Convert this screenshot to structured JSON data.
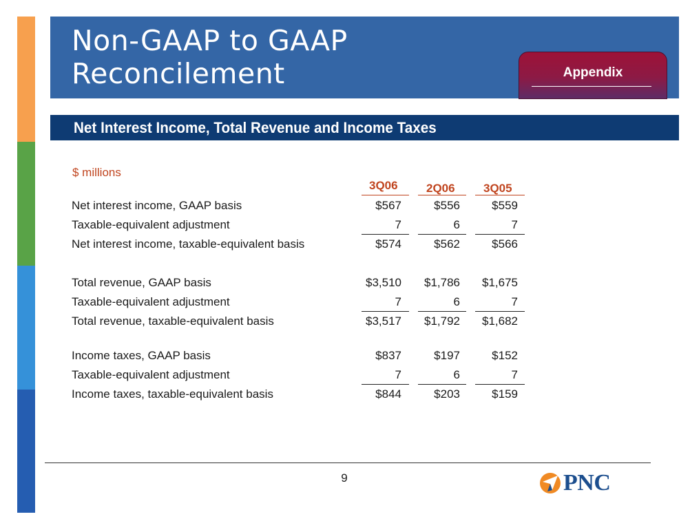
{
  "slide": {
    "title": "Non-GAAP to GAAP\nReconcilement",
    "tab_label": "Appendix",
    "section_title": "Net Interest Income, Total Revenue and Income Taxes",
    "units": "$ millions",
    "page_number": "9",
    "logo_text": "PNC"
  },
  "table": {
    "columns": [
      "3Q06",
      "2Q06",
      "3Q05"
    ],
    "rows": [
      {
        "label": "Net interest income, GAAP basis",
        "values": [
          "$567",
          "$556",
          "$559"
        ]
      },
      {
        "label": "Taxable-equivalent adjustment",
        "values": [
          "7",
          "6",
          "7"
        ]
      },
      {
        "label": "Net interest income, taxable-equivalent basis",
        "values": [
          "$574",
          "$562",
          "$566"
        ]
      },
      {
        "label": "Total revenue, GAAP basis",
        "values": [
          "$3,510",
          "$1,786",
          "$1,675"
        ]
      },
      {
        "label": "Taxable-equivalent adjustment",
        "values": [
          "7",
          "6",
          "7"
        ]
      },
      {
        "label": "Total revenue, taxable-equivalent basis",
        "values": [
          "$3,517",
          "$1,792",
          "$1,682"
        ]
      },
      {
        "label": "Income taxes, GAAP basis",
        "values": [
          "$837",
          "$197",
          "$152"
        ]
      },
      {
        "label": "Taxable-equivalent adjustment",
        "values": [
          "7",
          "6",
          "7"
        ]
      },
      {
        "label": "Income taxes, taxable-equivalent basis",
        "values": [
          "$844",
          "$203",
          "$159"
        ]
      }
    ]
  },
  "colors": {
    "title_band": "#3466A6",
    "section_bar": "#0E3B73",
    "accent_text": "#C0441E",
    "tab": "#8C1A45",
    "logo_orange": "#F08A24",
    "logo_blue": "#1C4E8E"
  },
  "icons": {
    "logo": "pnc-logo-icon"
  }
}
